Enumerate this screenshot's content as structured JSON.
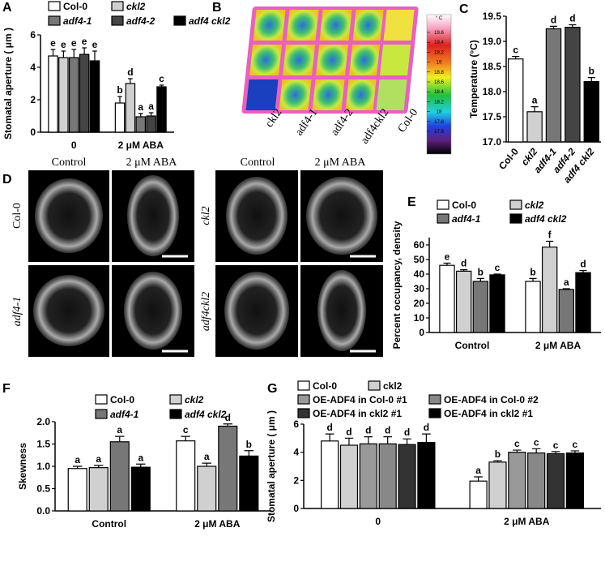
{
  "chart_data": [
    {
      "type": "bar",
      "panel": "A",
      "ylabel": "Stomatal aperture ( μm )",
      "categories": [
        "0",
        "2 μM ABA"
      ],
      "ylim": [
        0,
        6
      ],
      "yticks": [
        0,
        2,
        4,
        6
      ],
      "series": [
        {
          "name": "Col-0",
          "color": "#ffffff",
          "values": [
            4.7,
            1.8
          ],
          "errors": [
            0.4,
            0.4
          ],
          "letters": [
            "e",
            "b"
          ]
        },
        {
          "name": "ckl2",
          "color": "#d0d0d0",
          "values": [
            4.6,
            3.0
          ],
          "errors": [
            0.4,
            0.3
          ],
          "letters": [
            "e",
            "d"
          ]
        },
        {
          "name": "adf4-1",
          "color": "#777777",
          "values": [
            4.6,
            0.95
          ],
          "errors": [
            0.5,
            0.2
          ],
          "letters": [
            "e",
            "a"
          ]
        },
        {
          "name": "adf4-2",
          "color": "#444444",
          "values": [
            4.8,
            1.0
          ],
          "errors": [
            0.4,
            0.2
          ],
          "letters": [
            "e",
            "a"
          ]
        },
        {
          "name": "adf4 ckl2",
          "color": "#000000",
          "values": [
            4.4,
            2.8
          ],
          "errors": [
            0.6,
            0.1
          ],
          "letters": [
            "e",
            "c"
          ]
        }
      ]
    },
    {
      "type": "bar",
      "panel": "C",
      "ylabel": "Temperature (°C)",
      "categories": [
        "Col-0",
        "ckl2",
        "adf4-1",
        "adf4-2",
        "adf4 ckl2"
      ],
      "colors": [
        "#ffffff",
        "#d0d0d0",
        "#777777",
        "#444444",
        "#000000"
      ],
      "values": [
        18.65,
        17.6,
        19.25,
        19.28,
        18.2
      ],
      "errors": [
        0.05,
        0.1,
        0.05,
        0.05,
        0.08
      ],
      "letters": [
        "c",
        "a",
        "d",
        "d",
        "b"
      ],
      "ylim": [
        17,
        19.5
      ],
      "yticks": [
        {
          "value": 17,
          "label": "17.0"
        },
        17.5,
        {
          "value": 18,
          "label": "18.0"
        },
        18.5,
        {
          "value": 19,
          "label": "19.0"
        },
        19.5
      ]
    },
    {
      "type": "bar",
      "panel": "E",
      "ylabel": "Percent occupancy, density",
      "categories": [
        "Control",
        "2 μM ABA"
      ],
      "ylim": [
        0,
        65
      ],
      "yticks": [
        0,
        10,
        20,
        30,
        40,
        50,
        60
      ],
      "series": [
        {
          "name": "Col-0",
          "color": "#ffffff",
          "values": [
            46,
            35
          ],
          "errors": [
            1.5,
            2
          ],
          "letters": [
            "e",
            "b"
          ]
        },
        {
          "name": "ckl2",
          "color": "#d0d0d0",
          "values": [
            42,
            58.5
          ],
          "errors": [
            1,
            4
          ],
          "letters": [
            "d",
            "f"
          ]
        },
        {
          "name": "adf4-1",
          "color": "#777777",
          "values": [
            35,
            29.5
          ],
          "errors": [
            2,
            0.5
          ],
          "letters": [
            "b",
            "a"
          ]
        },
        {
          "name": "adf4 ckl2",
          "color": "#000000",
          "values": [
            39.5,
            41
          ],
          "errors": [
            0.5,
            1.5
          ],
          "letters": [
            "c",
            "d"
          ]
        }
      ]
    },
    {
      "type": "bar",
      "panel": "F",
      "ylabel": "Skewness",
      "categories": [
        "Control",
        "2 μM ABA"
      ],
      "ylim": [
        0,
        2
      ],
      "yticks": [
        {
          "value": 0,
          "label": "0.0"
        },
        0.5,
        {
          "value": 1,
          "label": "1.0"
        },
        1.5,
        {
          "value": 2,
          "label": "2.0"
        }
      ],
      "series": [
        {
          "name": "Col-0",
          "color": "#ffffff",
          "values": [
            0.95,
            1.57
          ],
          "errors": [
            0.05,
            0.1
          ],
          "letters": [
            "a",
            "c"
          ]
        },
        {
          "name": "ckl2",
          "color": "#d0d0d0",
          "values": [
            0.97,
            1.0
          ],
          "errors": [
            0.05,
            0.07
          ],
          "letters": [
            "a",
            "a"
          ]
        },
        {
          "name": "adf4-1",
          "color": "#777777",
          "values": [
            1.55,
            1.9
          ],
          "errors": [
            0.12,
            0.05
          ],
          "letters": [
            "a",
            "d"
          ]
        },
        {
          "name": "adf4 ckl2",
          "color": "#000000",
          "values": [
            0.98,
            1.23
          ],
          "errors": [
            0.07,
            0.12
          ],
          "letters": [
            "a",
            "b"
          ]
        }
      ]
    },
    {
      "type": "bar",
      "panel": "G",
      "ylabel": "Stomatal aperture ( μm )",
      "categories": [
        "0",
        "2 μM ABA"
      ],
      "ylim": [
        0,
        6
      ],
      "yticks": [
        0,
        2,
        4,
        6
      ],
      "series": [
        {
          "name": "Col-0",
          "color": "#ffffff",
          "values": [
            4.8,
            1.95
          ],
          "errors": [
            0.5,
            0.3
          ],
          "letters": [
            "d",
            "a"
          ]
        },
        {
          "name": "ckl2",
          "color": "#d0d0d0",
          "values": [
            4.5,
            3.3
          ],
          "errors": [
            0.5,
            0.1
          ],
          "letters": [
            "d",
            "b"
          ]
        },
        {
          "name": "OE-ADF4 in Col-0 #1",
          "color": "#999999",
          "values": [
            4.6,
            4.0
          ],
          "errors": [
            0.5,
            0.15
          ],
          "letters": [
            "d",
            "c"
          ]
        },
        {
          "name": "OE-ADF4 in Col-0 #2",
          "color": "#888888",
          "values": [
            4.6,
            3.95
          ],
          "errors": [
            0.5,
            0.3
          ],
          "letters": [
            "d",
            "c"
          ]
        },
        {
          "name": "OE-ADF4 in ckl2 #1",
          "color": "#333333",
          "values": [
            4.55,
            3.9
          ],
          "errors": [
            0.4,
            0.15
          ],
          "letters": [
            "d",
            "c"
          ]
        },
        {
          "name": "OE-ADF4 in ckl2 #1",
          "color": "#000000",
          "values": [
            4.7,
            3.95
          ],
          "errors": [
            0.6,
            0.15
          ],
          "letters": [
            "d",
            "c"
          ]
        }
      ]
    }
  ],
  "thermal_image": {
    "panel": "B",
    "labels": [
      "ckl2",
      "adf4-1",
      "adf4-2",
      "adf4ckl2",
      "Col-0"
    ],
    "colorbar_unit": "° C",
    "colorbar_ticks": [
      19.6,
      19.4,
      19.2,
      19,
      18.8,
      18.6,
      18.4,
      18.2,
      18,
      17.8,
      17.6
    ]
  },
  "micrographs": {
    "panel": "D",
    "columns": [
      "Control",
      "2 μM ABA",
      "Control",
      "2 μM ABA"
    ],
    "rows": [
      "Col-0",
      "adf4-1",
      "ckl2",
      "adf4ckl2"
    ]
  }
}
